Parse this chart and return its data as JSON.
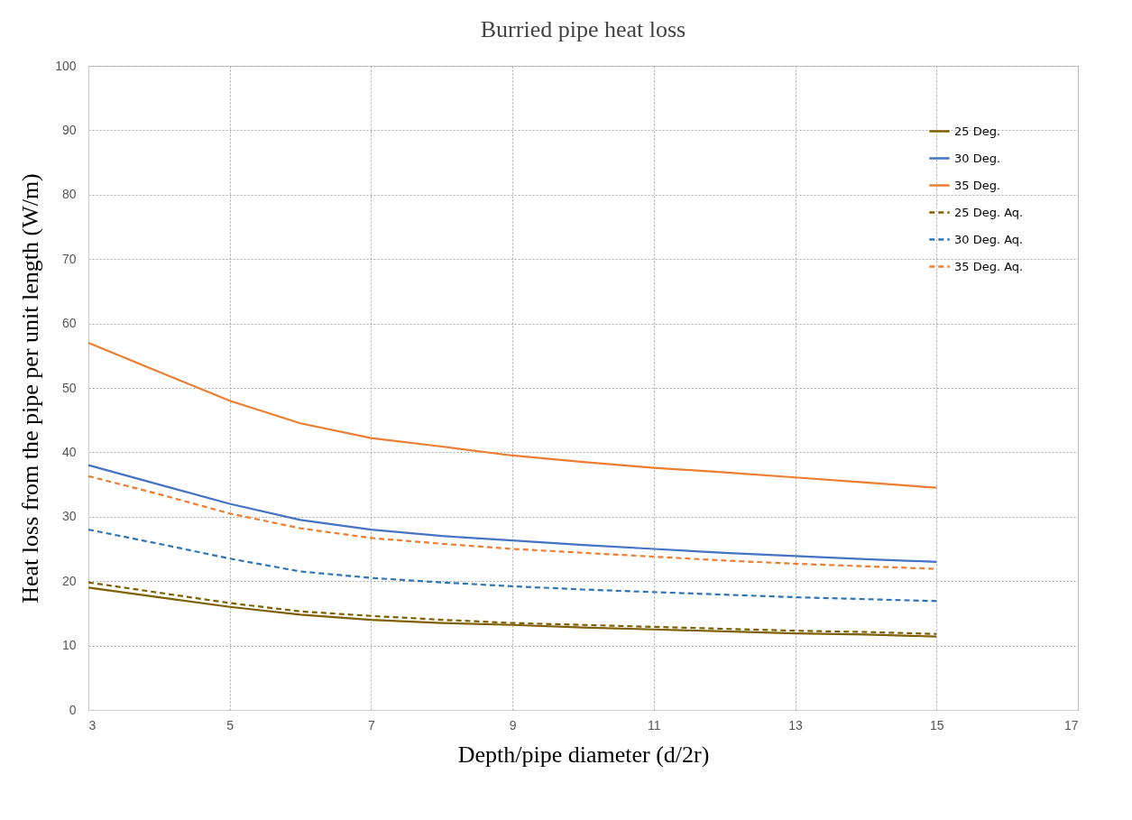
{
  "chart_data": {
    "type": "line",
    "title": "Burried pipe heat loss",
    "xlabel": "Depth/pipe diameter (d/2r)",
    "ylabel": "Heat loss from the pipe per unit length (W/m)",
    "x": [
      3,
      4,
      5,
      6,
      7,
      8,
      9,
      10,
      11,
      12,
      13,
      14,
      15
    ],
    "series": [
      {
        "name": "25 Deg.",
        "color": "#7f6000",
        "line_style": "solid",
        "values": [
          19,
          17.5,
          16,
          14.8,
          14,
          13.5,
          13.2,
          12.8,
          12.5,
          12.2,
          11.9,
          11.7,
          11.4
        ]
      },
      {
        "name": "30 Deg.",
        "color": "#4472c4",
        "line_style": "solid",
        "values": [
          38,
          35,
          32,
          29.5,
          28,
          27,
          26.3,
          25.6,
          25,
          24.4,
          23.9,
          23.4,
          23
        ]
      },
      {
        "name": "35 Deg.",
        "color": "#ed7d31",
        "line_style": "solid",
        "values": [
          57,
          52.5,
          48,
          44.5,
          42.2,
          40.9,
          39.5,
          38.5,
          37.6,
          36.9,
          36.1,
          35.3,
          34.5
        ]
      },
      {
        "name": "25 Deg. Aq.",
        "color": "#7f6000",
        "line_style": "dashed",
        "values": [
          19.8,
          18.2,
          16.6,
          15.3,
          14.6,
          14,
          13.5,
          13.2,
          12.9,
          12.6,
          12.3,
          12.1,
          11.8
        ]
      },
      {
        "name": "30 Deg. Aq.",
        "color": "#2e75b6",
        "line_style": "dashed",
        "values": [
          28,
          25.8,
          23.5,
          21.5,
          20.5,
          19.8,
          19.2,
          18.7,
          18.3,
          17.9,
          17.5,
          17.2,
          16.9
        ]
      },
      {
        "name": "35 Deg. Aq.",
        "color": "#ed7d31",
        "line_style": "dashed",
        "values": [
          36.3,
          33.5,
          30.5,
          28.2,
          26.7,
          25.8,
          25,
          24.4,
          23.8,
          23.2,
          22.7,
          22.3,
          21.9
        ]
      }
    ],
    "xlim": [
      3,
      17
    ],
    "xticks": [
      3,
      5,
      7,
      9,
      11,
      13,
      15,
      17
    ],
    "ylim": [
      0,
      100
    ],
    "yticks": [
      0,
      10,
      20,
      30,
      40,
      50,
      60,
      70,
      80,
      90,
      100
    ],
    "grid": true,
    "legend": "top right",
    "marker": "none"
  }
}
